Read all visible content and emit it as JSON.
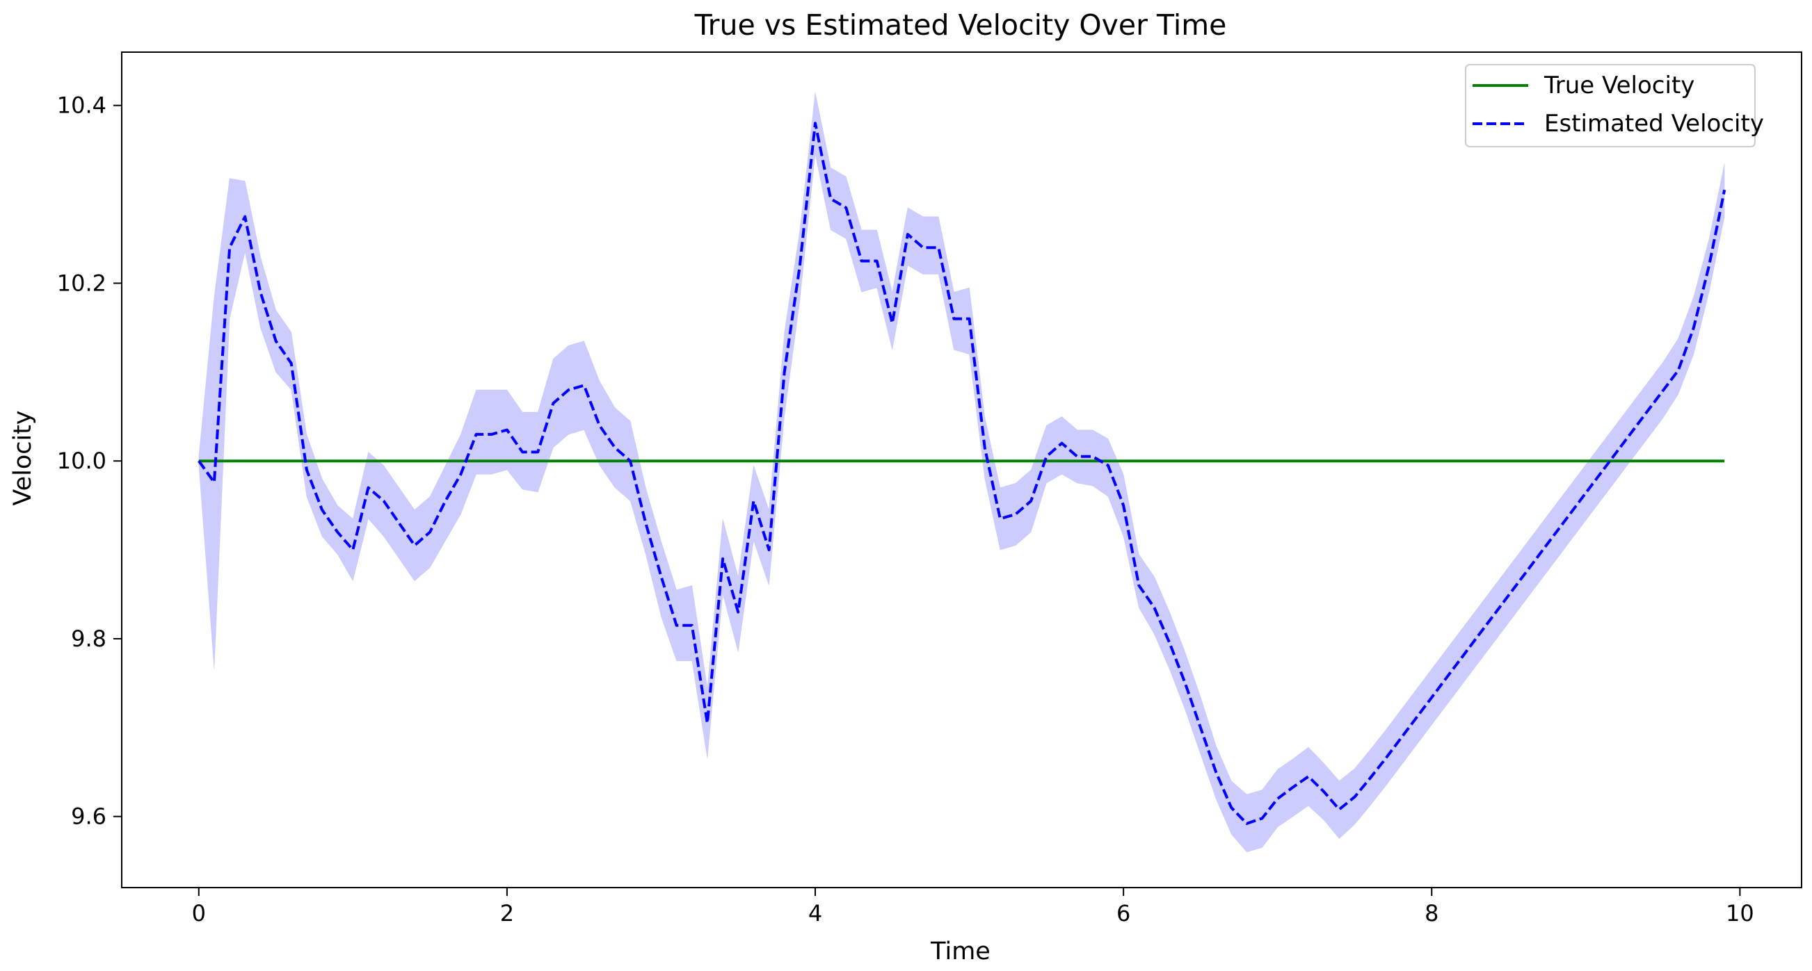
{
  "chart_data": {
    "type": "line",
    "title": "True vs Estimated Velocity Over Time",
    "xlabel": "Time",
    "ylabel": "Velocity",
    "xlim": [
      -0.5,
      10.4
    ],
    "ylim": [
      9.52,
      10.46
    ],
    "xticks": [
      0,
      2,
      4,
      6,
      8,
      10
    ],
    "yticks": [
      9.6,
      9.8,
      10.0,
      10.2,
      10.4
    ],
    "xtick_labels": [
      "0",
      "2",
      "4",
      "6",
      "8",
      "10"
    ],
    "ytick_labels": [
      "9.6",
      "9.8",
      "10.0",
      "10.2",
      "10.4"
    ],
    "grid": false,
    "legend": {
      "position": "top-right",
      "entries": [
        "True Velocity",
        "Estimated Velocity"
      ]
    },
    "x": [
      0.0,
      0.1,
      0.2,
      0.3,
      0.4,
      0.5,
      0.6,
      0.7,
      0.8,
      0.9,
      1.0,
      1.1,
      1.2,
      1.3,
      1.4,
      1.5,
      1.6,
      1.7,
      1.8,
      1.9,
      2.0,
      2.1,
      2.2,
      2.3,
      2.4,
      2.5,
      2.6,
      2.7,
      2.8,
      2.9,
      3.0,
      3.1,
      3.2,
      3.3,
      3.4,
      3.5,
      3.6,
      3.7,
      3.8,
      3.9,
      4.0,
      4.1,
      4.2,
      4.3,
      4.4,
      4.5,
      4.6,
      4.7,
      4.8,
      4.9,
      5.0,
      5.1,
      5.2,
      5.3,
      5.4,
      5.5,
      5.6,
      5.7,
      5.8,
      5.9,
      6.0,
      6.1,
      6.2,
      6.3,
      6.4,
      6.5,
      6.6,
      6.7,
      6.8,
      6.9,
      7.0,
      7.1,
      7.2,
      7.3,
      7.4,
      7.5,
      7.6,
      7.7,
      7.8,
      7.9,
      8.0,
      8.1,
      8.2,
      8.3,
      8.4,
      8.5,
      8.6,
      8.7,
      8.8,
      8.9,
      9.0,
      9.1,
      9.2,
      9.3,
      9.4,
      9.5,
      9.6,
      9.7,
      9.8,
      9.9
    ],
    "series": [
      {
        "name": "True Velocity",
        "color": "#008000",
        "style": "solid",
        "values": [
          10.0,
          10.0,
          10.0,
          10.0,
          10.0,
          10.0,
          10.0,
          10.0,
          10.0,
          10.0,
          10.0,
          10.0,
          10.0,
          10.0,
          10.0,
          10.0,
          10.0,
          10.0,
          10.0,
          10.0,
          10.0,
          10.0,
          10.0,
          10.0,
          10.0,
          10.0,
          10.0,
          10.0,
          10.0,
          10.0,
          10.0,
          10.0,
          10.0,
          10.0,
          10.0,
          10.0,
          10.0,
          10.0,
          10.0,
          10.0,
          10.0,
          10.0,
          10.0,
          10.0,
          10.0,
          10.0,
          10.0,
          10.0,
          10.0,
          10.0,
          10.0,
          10.0,
          10.0,
          10.0,
          10.0,
          10.0,
          10.0,
          10.0,
          10.0,
          10.0,
          10.0,
          10.0,
          10.0,
          10.0,
          10.0,
          10.0,
          10.0,
          10.0,
          10.0,
          10.0,
          10.0,
          10.0,
          10.0,
          10.0,
          10.0,
          10.0,
          10.0,
          10.0,
          10.0,
          10.0,
          10.0,
          10.0,
          10.0,
          10.0,
          10.0,
          10.0,
          10.0,
          10.0,
          10.0,
          10.0,
          10.0,
          10.0,
          10.0,
          10.0,
          10.0,
          10.0,
          10.0,
          10.0,
          10.0,
          10.0
        ]
      },
      {
        "name": "Estimated Velocity",
        "color": "#0000ff",
        "style": "dashed",
        "values": [
          10.0,
          9.976,
          10.24,
          10.275,
          10.19,
          10.135,
          10.11,
          9.99,
          9.945,
          9.92,
          9.9,
          9.97,
          9.955,
          9.93,
          9.905,
          9.92,
          9.955,
          9.985,
          10.03,
          10.03,
          10.035,
          10.01,
          10.01,
          10.065,
          10.08,
          10.085,
          10.04,
          10.015,
          10.0,
          9.93,
          9.87,
          9.815,
          9.815,
          9.705,
          9.89,
          9.83,
          9.955,
          9.9,
          10.1,
          10.22,
          10.38,
          10.295,
          10.285,
          10.225,
          10.225,
          10.155,
          10.255,
          10.24,
          10.24,
          10.16,
          10.16,
          10.015,
          9.935,
          9.94,
          9.955,
          10.005,
          10.02,
          10.005,
          10.005,
          9.995,
          9.95,
          9.86,
          9.835,
          9.795,
          9.75,
          9.7,
          9.65,
          9.61,
          9.592,
          9.598,
          9.62,
          9.633,
          9.645,
          9.628,
          9.608,
          9.622,
          9.643,
          9.665,
          9.688,
          9.711,
          9.734,
          9.757,
          9.78,
          9.803,
          9.826,
          9.849,
          9.872,
          9.895,
          9.918,
          9.941,
          9.964,
          9.987,
          10.01,
          10.033,
          10.056,
          10.079,
          10.102,
          10.15,
          10.22,
          10.305
        ]
      }
    ],
    "band": {
      "series": "Estimated Velocity",
      "color": "#0000ff",
      "opacity": 0.2,
      "lower": [
        9.995,
        9.765,
        10.16,
        10.235,
        10.15,
        10.1,
        10.08,
        9.96,
        9.915,
        9.895,
        9.865,
        9.935,
        9.915,
        9.89,
        9.865,
        9.88,
        9.91,
        9.94,
        9.985,
        9.985,
        9.99,
        9.968,
        9.965,
        10.015,
        10.03,
        10.035,
        9.995,
        9.97,
        9.955,
        9.895,
        9.825,
        9.775,
        9.775,
        9.665,
        9.85,
        9.785,
        9.91,
        9.86,
        10.05,
        10.18,
        10.345,
        10.26,
        10.25,
        10.19,
        10.195,
        10.125,
        10.22,
        10.21,
        10.21,
        10.125,
        10.12,
        9.98,
        9.9,
        9.905,
        9.92,
        9.975,
        9.985,
        9.975,
        9.972,
        9.96,
        9.915,
        9.835,
        9.805,
        9.765,
        9.72,
        9.67,
        9.62,
        9.58,
        9.56,
        9.565,
        9.588,
        9.6,
        9.612,
        9.596,
        9.575,
        9.591,
        9.612,
        9.634,
        9.657,
        9.68,
        9.703,
        9.726,
        9.749,
        9.772,
        9.795,
        9.818,
        9.841,
        9.864,
        9.887,
        9.91,
        9.933,
        9.956,
        9.979,
        10.002,
        10.025,
        10.048,
        10.075,
        10.12,
        10.19,
        10.275
      ],
      "upper": [
        10.005,
        10.185,
        10.318,
        10.315,
        10.23,
        10.17,
        10.145,
        10.03,
        9.98,
        9.95,
        9.935,
        10.01,
        9.995,
        9.97,
        9.945,
        9.96,
        9.995,
        10.03,
        10.08,
        10.08,
        10.08,
        10.055,
        10.055,
        10.115,
        10.13,
        10.135,
        10.09,
        10.06,
        10.045,
        9.97,
        9.91,
        9.855,
        9.86,
        9.745,
        9.935,
        9.87,
        9.995,
        9.945,
        10.145,
        10.26,
        10.415,
        10.33,
        10.32,
        10.26,
        10.26,
        10.19,
        10.285,
        10.275,
        10.275,
        10.19,
        10.195,
        10.05,
        9.97,
        9.975,
        9.99,
        10.04,
        10.05,
        10.035,
        10.035,
        10.025,
        9.985,
        9.895,
        9.87,
        9.83,
        9.785,
        9.735,
        9.68,
        9.64,
        9.625,
        9.63,
        9.653,
        9.665,
        9.678,
        9.66,
        9.64,
        9.654,
        9.675,
        9.697,
        9.72,
        9.743,
        9.766,
        9.789,
        9.812,
        9.835,
        9.858,
        9.881,
        9.904,
        9.927,
        9.95,
        9.973,
        9.996,
        10.019,
        10.042,
        10.065,
        10.088,
        10.111,
        10.138,
        10.185,
        10.25,
        10.335
      ]
    }
  }
}
